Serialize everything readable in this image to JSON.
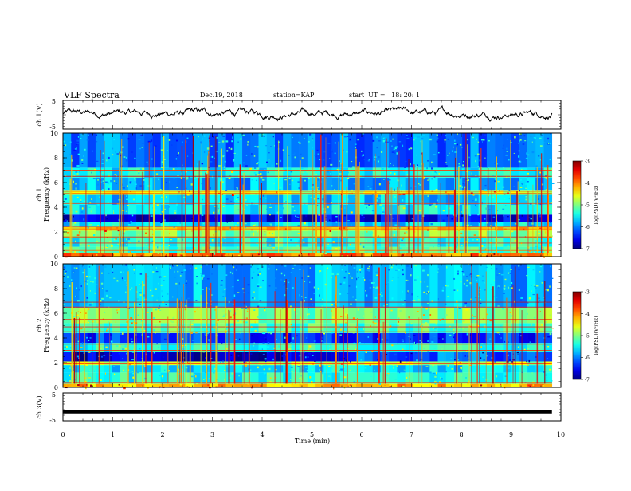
{
  "header": {
    "title": "VLF Spectra",
    "date": "Dec.19, 2018",
    "station": "station=KAP",
    "start": "start  UT =   18: 20: 1"
  },
  "chart_data": [
    {
      "id": "ch1-waveform",
      "type": "line",
      "ylabel": "ch.1(V)",
      "ylim": [
        -5,
        5
      ],
      "yticks": [
        -5,
        5
      ],
      "xlim": [
        0,
        10
      ],
      "x_extent": [
        0,
        9.82
      ],
      "description_values": {
        "mean": 0.5,
        "range": [
          -2.5,
          3.5
        ]
      }
    },
    {
      "id": "ch1-spectrogram",
      "type": "heatmap",
      "ylabel": "ch.1",
      "ylabel2": "Frequency (kHz)",
      "ylim": [
        0,
        10
      ],
      "yticks": [
        0,
        2,
        4,
        6,
        8,
        10
      ],
      "xlim": [
        0,
        10
      ],
      "x_extent": [
        0,
        9.82
      ],
      "colorbar": {
        "label": "log(PSD)(V²/Hz)",
        "range": [
          -7,
          -3
        ],
        "ticks": [
          -3,
          -4,
          -5,
          -6,
          -7
        ]
      },
      "bands": [
        {
          "f": [
            0.0,
            0.3
          ],
          "v": -4.0
        },
        {
          "f": [
            0.3,
            0.8
          ],
          "v": -5.2
        },
        {
          "f": [
            0.8,
            1.5
          ],
          "v": -5.4
        },
        {
          "f": [
            1.5,
            2.1
          ],
          "v": -5.0
        },
        {
          "f": [
            2.1,
            2.4
          ],
          "v": -4.4
        },
        {
          "f": [
            2.4,
            2.8
          ],
          "v": -5.6
        },
        {
          "f": [
            2.8,
            3.4
          ],
          "v": -6.6
        },
        {
          "f": [
            3.4,
            4.2
          ],
          "v": -5.5
        },
        {
          "f": [
            4.2,
            5.0
          ],
          "v": -5.7
        },
        {
          "f": [
            5.0,
            5.4
          ],
          "v": -4.6
        },
        {
          "f": [
            5.4,
            6.4
          ],
          "v": -5.8
        },
        {
          "f": [
            6.4,
            7.2
          ],
          "v": -5.5
        },
        {
          "f": [
            7.2,
            10.0
          ],
          "v": -6.0
        }
      ]
    },
    {
      "id": "ch2-spectrogram",
      "type": "heatmap",
      "ylabel": "ch.2",
      "ylabel2": "Frequency (kHz)",
      "ylim": [
        0,
        10
      ],
      "yticks": [
        0,
        2,
        4,
        6,
        8,
        10
      ],
      "xlim": [
        0,
        10
      ],
      "x_extent": [
        0,
        9.82
      ],
      "colorbar": {
        "label": "log(PSD)(V²/Hz)",
        "range": [
          -7,
          -3
        ],
        "ticks": [
          -3,
          -4,
          -5,
          -6,
          -7
        ]
      },
      "bands": [
        {
          "f": [
            0.0,
            0.3
          ],
          "v": -4.2
        },
        {
          "f": [
            0.3,
            1.2
          ],
          "v": -5.4
        },
        {
          "f": [
            1.2,
            1.8
          ],
          "v": -5.6
        },
        {
          "f": [
            1.8,
            2.1
          ],
          "v": -4.8
        },
        {
          "f": [
            2.1,
            2.9
          ],
          "v": -6.7
        },
        {
          "f": [
            2.9,
            3.6
          ],
          "v": -5.4
        },
        {
          "f": [
            3.6,
            4.4
          ],
          "v": -6.3
        },
        {
          "f": [
            4.4,
            5.2
          ],
          "v": -5.2
        },
        {
          "f": [
            5.2,
            6.4
          ],
          "v": -5.0
        },
        {
          "f": [
            6.4,
            10.0
          ],
          "v": -5.8
        }
      ]
    },
    {
      "id": "ch3-waveform",
      "type": "line",
      "ylabel": "ch.3(V)",
      "ylim": [
        -5,
        5
      ],
      "yticks": [
        -5,
        5
      ],
      "xlim": [
        0,
        10
      ],
      "x_extent": [
        0,
        9.82
      ],
      "description_values": {
        "mean": -1.8,
        "range": [
          -2.0,
          -1.6
        ]
      }
    }
  ],
  "xaxis": {
    "label": "Time (min)",
    "ticks": [
      0,
      1,
      2,
      3,
      4,
      5,
      6,
      7,
      8,
      9,
      10
    ]
  }
}
